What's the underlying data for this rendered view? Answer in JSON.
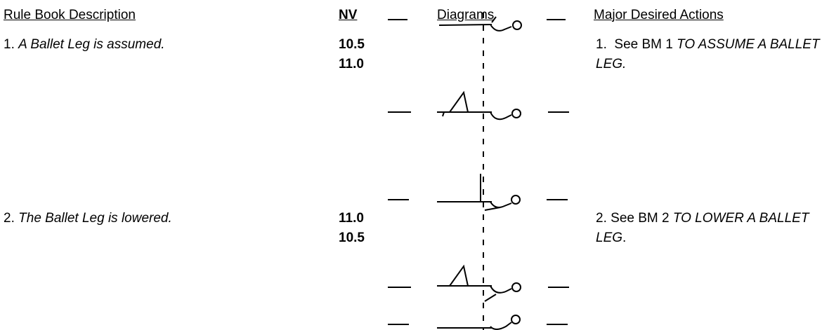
{
  "header": {
    "columns": [
      "Rule Book Description",
      "NV",
      "Diagrams",
      "Major Desired Actions"
    ]
  },
  "rows": [
    {
      "number": "1.",
      "description": "A Ballet Leg is assumed.",
      "nv": [
        "10.5",
        "11.0"
      ],
      "action_number": "1.",
      "action_text": "See BM 1",
      "action_italic": "TO ASSUME A BALLET LEG."
    },
    {
      "number": "2.",
      "description": "The Ballet Leg is lowered.",
      "nv": [
        "11.0",
        "10.5"
      ],
      "action_number": "2.",
      "action_text": "See BM 2",
      "action_italic": "TO LOWER A BALLET LEG",
      "action_end": "."
    }
  ]
}
